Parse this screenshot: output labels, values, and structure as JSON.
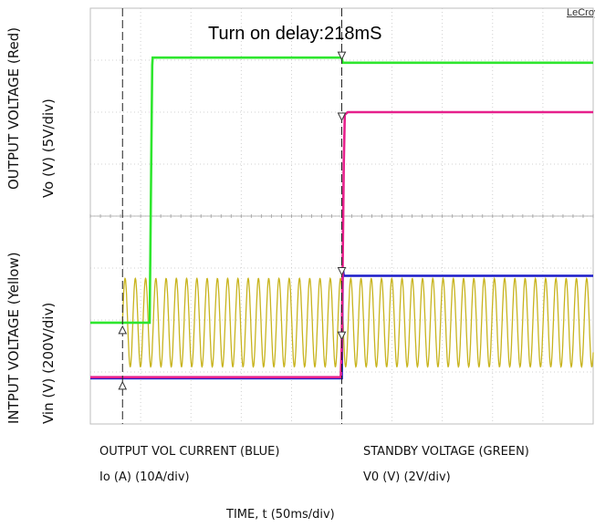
{
  "brand": "LeCroy",
  "chart_data": {
    "type": "line",
    "title": "Turn on delay:218mS",
    "x_axis": {
      "label": "TIME, t (50ms/div)",
      "unit": "ms",
      "per_div": 50,
      "divisions": 10,
      "range": [
        0,
        500
      ]
    },
    "y_axis": {
      "divisions": 8,
      "range": [
        -4,
        4
      ],
      "labels": [
        {
          "line1": "OUTPUT VOLTAGE (Red)",
          "line2": "Vo (V) (5V/div)"
        },
        {
          "line1": "INTPUT VOLTAGE (Yellow)",
          "line2": "Vin (V) (200V/div)"
        }
      ]
    },
    "bottom_labels": [
      {
        "line1": "OUTPUT VOL CURRENT (BLUE)",
        "line2": "Io (A) (10A/div)"
      },
      {
        "line1": "STANDBY VOLTAGE (GREEN)",
        "line2": "V0 (V) (2V/div)"
      }
    ],
    "cursors_ms": [
      32,
      250
    ],
    "turn_on_delay_ms": 218,
    "grid": true,
    "series": [
      {
        "color": "#2ee62e",
        "unit": "div",
        "points": [
          [
            0,
            -2.05
          ],
          [
            59,
            -2.05
          ],
          [
            59.5,
            -1.0
          ],
          [
            60.5,
            1.0
          ],
          [
            61.5,
            2.9
          ],
          [
            62,
            3.05
          ],
          [
            250,
            3.05
          ],
          [
            251,
            2.95
          ],
          [
            500,
            2.95
          ]
        ]
      },
      {
        "color": "#e6208c",
        "unit": "div",
        "points": [
          [
            0,
            -3.1
          ],
          [
            249,
            -3.1
          ],
          [
            250,
            -2.5
          ],
          [
            252,
            1.0
          ],
          [
            253,
            1.95
          ],
          [
            256,
            2.0
          ],
          [
            500,
            2.0
          ]
        ]
      },
      {
        "color": "#1c1cc8",
        "unit": "div",
        "points": [
          [
            0,
            -3.12
          ],
          [
            250,
            -3.12
          ],
          [
            251,
            -1.0
          ],
          [
            252,
            -1.15
          ],
          [
            500,
            -1.15
          ]
        ]
      },
      {
        "color": "#c8b41e",
        "unit": "div",
        "amplitude_div": 0.85,
        "offset_div": -2.05,
        "period_ms": 10.2,
        "start_ms": 32,
        "end_ms": 500
      }
    ]
  }
}
